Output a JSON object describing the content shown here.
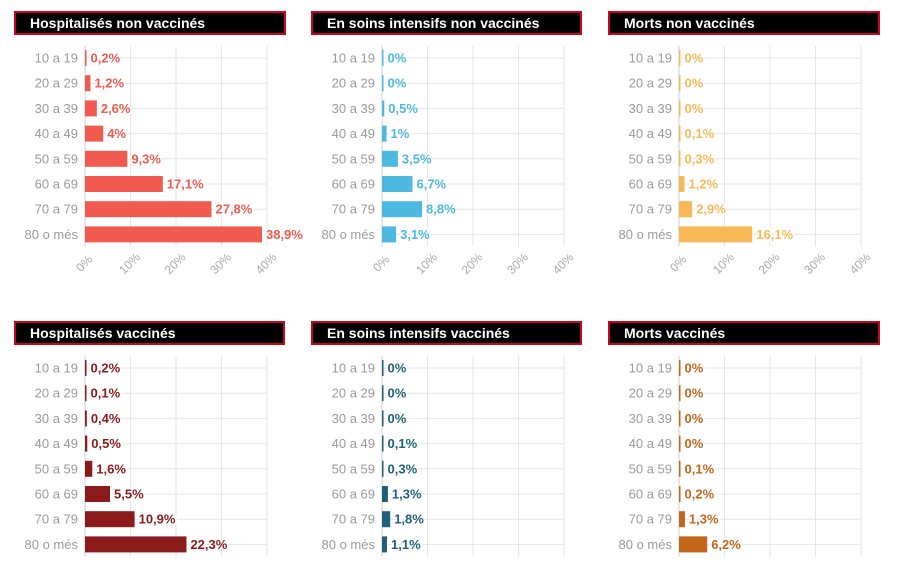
{
  "chart_data": [
    {
      "type": "bar",
      "orientation": "horizontal",
      "title": "Hospitalisés non vaccinés",
      "categories": [
        "10 a 19",
        "20 a 29",
        "30 a 39",
        "40 a 49",
        "50 a 59",
        "60 a 69",
        "70 a 79",
        "80 o més"
      ],
      "values": [
        0.2,
        1.2,
        2.6,
        4,
        9.3,
        17.1,
        27.8,
        38.9
      ],
      "labels": [
        "0,2%",
        "1,2%",
        "2,6%",
        "4%",
        "9,3%",
        "17,1%",
        "27,8%",
        "38,9%"
      ],
      "xlim": [
        0,
        40
      ],
      "xticks": [
        "0%",
        "10%",
        "20%",
        "30%",
        "40%"
      ],
      "color": "#f05a4f"
    },
    {
      "type": "bar",
      "orientation": "horizontal",
      "title": "En soins intensifs non vaccinés",
      "categories": [
        "10 a 19",
        "20 a 29",
        "30 a 39",
        "40 a 49",
        "50 a 59",
        "60 a 69",
        "70 a 79",
        "80 o més"
      ],
      "values": [
        0,
        0,
        0.5,
        1,
        3.5,
        6.7,
        8.8,
        3.1
      ],
      "labels": [
        "0%",
        "0%",
        "0,5%",
        "1%",
        "3,5%",
        "6,7%",
        "8,8%",
        "3,1%"
      ],
      "xlim": [
        0,
        40
      ],
      "xticks": [
        "0%",
        "10%",
        "20%",
        "30%",
        "40%"
      ],
      "color": "#4db8e0"
    },
    {
      "type": "bar",
      "orientation": "horizontal",
      "title": "Morts non vaccinés",
      "categories": [
        "10 a 19",
        "20 a 29",
        "30 a 39",
        "40 a 49",
        "50 a 59",
        "60 a 69",
        "70 a 79",
        "80 o més"
      ],
      "values": [
        0,
        0,
        0,
        0.1,
        0.3,
        1.2,
        2.9,
        16.1
      ],
      "labels": [
        "0%",
        "0%",
        "0%",
        "0,1%",
        "0,3%",
        "1,2%",
        "2,9%",
        "16,1%"
      ],
      "xlim": [
        0,
        40
      ],
      "xticks": [
        "0%",
        "10%",
        "20%",
        "30%",
        "40%"
      ],
      "color": "#f7b955"
    },
    {
      "type": "bar",
      "orientation": "horizontal",
      "title": "Hospitalisés vaccinés",
      "categories": [
        "10 a 19",
        "20 a 29",
        "30 a 39",
        "40 a 49",
        "50 a 59",
        "60 a 69",
        "70 a 79",
        "80 o més"
      ],
      "values": [
        0.2,
        0.1,
        0.4,
        0.5,
        1.6,
        5.5,
        10.9,
        22.3
      ],
      "labels": [
        "0,2%",
        "0,1%",
        "0,4%",
        "0,5%",
        "1,6%",
        "5,5%",
        "10,9%",
        "22,3%"
      ],
      "xlim": [
        0,
        40
      ],
      "xticks": [],
      "color": "#8b1a1a"
    },
    {
      "type": "bar",
      "orientation": "horizontal",
      "title": "En soins intensifs vaccinés",
      "categories": [
        "10 a 19",
        "20 a 29",
        "30 a 39",
        "40 a 49",
        "50 a 59",
        "60 a 69",
        "70 a 79",
        "80 o més"
      ],
      "values": [
        0,
        0,
        0,
        0.1,
        0.3,
        1.3,
        1.8,
        1.1
      ],
      "labels": [
        "0%",
        "0%",
        "0%",
        "0,1%",
        "0,3%",
        "1,3%",
        "1,8%",
        "1,1%"
      ],
      "xlim": [
        0,
        40
      ],
      "xticks": [],
      "color": "#1f5f7a"
    },
    {
      "type": "bar",
      "orientation": "horizontal",
      "title": "Morts  vaccinés",
      "categories": [
        "10 a 19",
        "20 a 29",
        "30 a 39",
        "40 a 49",
        "50 a 59",
        "60 a 69",
        "70 a 79",
        "80 o més"
      ],
      "values": [
        0,
        0,
        0,
        0,
        0.1,
        0.2,
        1.3,
        6.2
      ],
      "labels": [
        "0%",
        "0%",
        "0%",
        "0%",
        "0,1%",
        "0,2%",
        "1,3%",
        "6,2%"
      ],
      "xlim": [
        0,
        40
      ],
      "xticks": [],
      "color": "#c2661c"
    }
  ]
}
